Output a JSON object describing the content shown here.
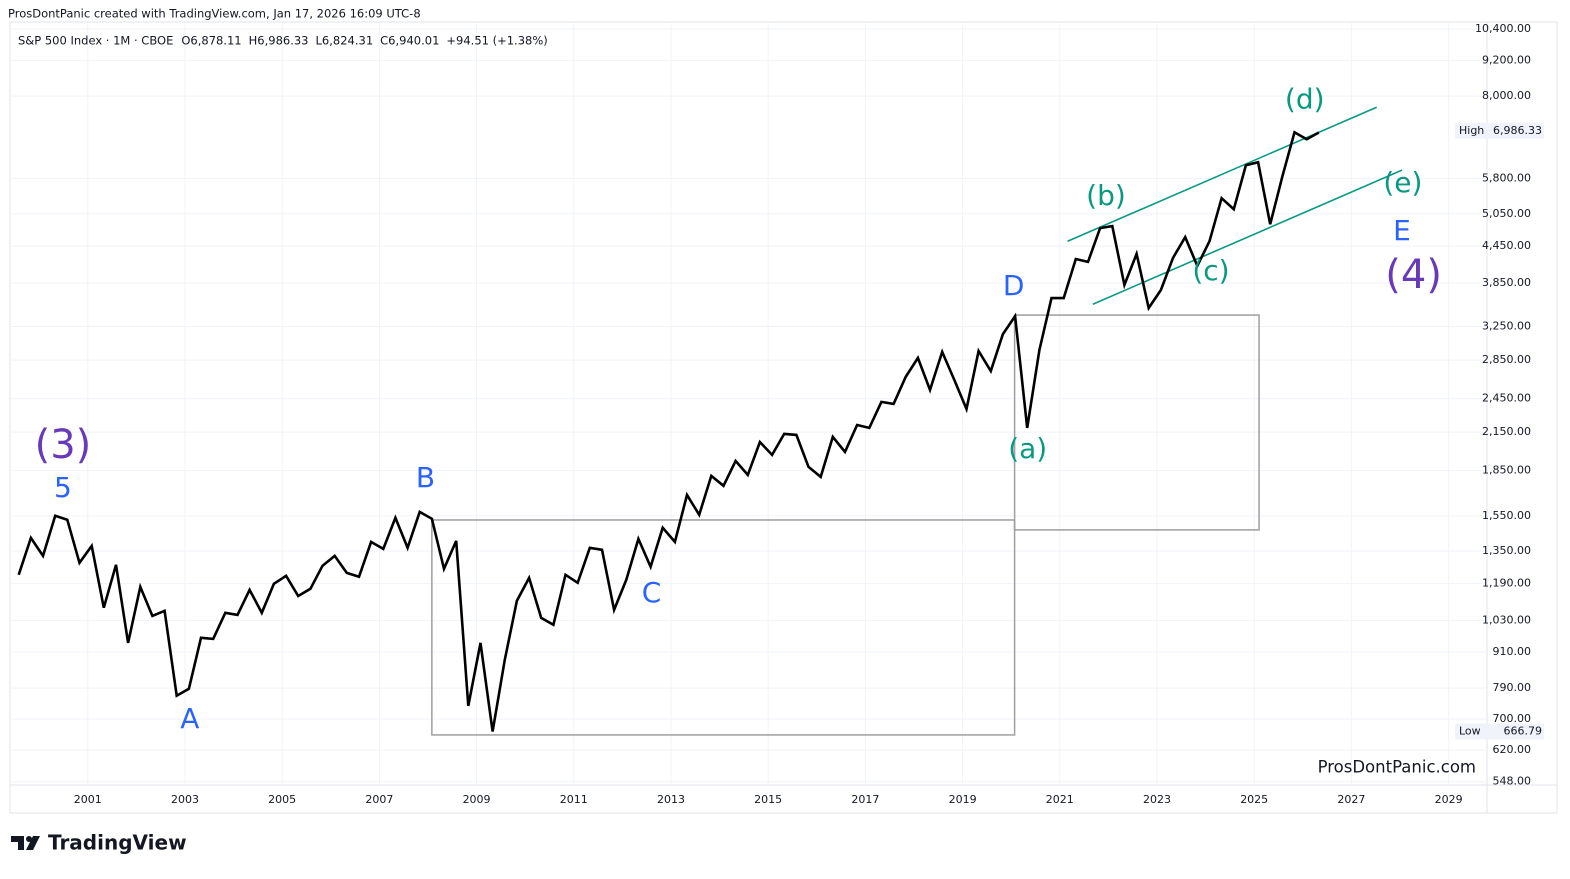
{
  "header": {
    "credit": "ProsDontPanic created with TradingView.com, Jan 17, 2026 16:09 UTC-8",
    "symbol": "S&P 500 Index · 1M · CBOE",
    "ohlc": [
      {
        "label": "O",
        "value": "6,878.11"
      },
      {
        "label": "H",
        "value": "6,986.33"
      },
      {
        "label": "L",
        "value": "6,824.31"
      },
      {
        "label": "C",
        "value": "6,940.01"
      }
    ],
    "change": "+94.51 (+1.38%)"
  },
  "watermark": "ProsDontPanic.com",
  "logo": "TradingView",
  "chart_data": {
    "type": "line",
    "log_scale": true,
    "grid": true,
    "color": "#000000",
    "xlim": [
      1999.4,
      2029.79
    ],
    "ylim": [
      541,
      10690
    ],
    "xticks": [
      2001,
      2003,
      2005,
      2007,
      2009,
      2011,
      2013,
      2015,
      2017,
      2019,
      2021,
      2023,
      2025,
      2027,
      2029
    ],
    "yticks": [
      {
        "value": 10400,
        "label": "10,400.00"
      },
      {
        "value": 9200,
        "label": "9,200.00"
      },
      {
        "value": 8000,
        "label": "8,000.00"
      },
      {
        "value": 5800,
        "label": "5,800.00"
      },
      {
        "value": 5050,
        "label": "5,050.00"
      },
      {
        "value": 4450,
        "label": "4,450.00"
      },
      {
        "value": 3850,
        "label": "3,850.00"
      },
      {
        "value": 3250,
        "label": "3,250.00"
      },
      {
        "value": 2850,
        "label": "2,850.00"
      },
      {
        "value": 2450,
        "label": "2,450.00"
      },
      {
        "value": 2150,
        "label": "2,150.00"
      },
      {
        "value": 1850,
        "label": "1,850.00"
      },
      {
        "value": 1550,
        "label": "1,550.00"
      },
      {
        "value": 1350,
        "label": "1,350.00"
      },
      {
        "value": 1190,
        "label": "1,190.00"
      },
      {
        "value": 1030,
        "label": "1,030.00"
      },
      {
        "value": 910,
        "label": "910.00"
      },
      {
        "value": 790,
        "label": "790.00"
      },
      {
        "value": 700,
        "label": "700.00"
      },
      {
        "value": 620,
        "label": "620.00"
      },
      {
        "value": 548,
        "label": "548.00"
      }
    ],
    "x": [
      1999.58,
      1999.83,
      2000.08,
      2000.33,
      2000.58,
      2000.83,
      2001.08,
      2001.33,
      2001.58,
      2001.83,
      2002.08,
      2002.33,
      2002.58,
      2002.83,
      2003.08,
      2003.33,
      2003.58,
      2003.83,
      2004.08,
      2004.33,
      2004.58,
      2004.83,
      2005.08,
      2005.33,
      2005.58,
      2005.83,
      2006.08,
      2006.33,
      2006.58,
      2006.83,
      2007.08,
      2007.33,
      2007.58,
      2007.83,
      2008.08,
      2008.33,
      2008.58,
      2008.83,
      2009.08,
      2009.33,
      2009.58,
      2009.83,
      2010.08,
      2010.33,
      2010.58,
      2010.83,
      2011.08,
      2011.33,
      2011.58,
      2011.83,
      2012.08,
      2012.33,
      2012.58,
      2012.83,
      2013.08,
      2013.33,
      2013.58,
      2013.83,
      2014.08,
      2014.33,
      2014.58,
      2014.83,
      2015.08,
      2015.33,
      2015.58,
      2015.83,
      2016.08,
      2016.33,
      2016.58,
      2016.83,
      2017.08,
      2017.33,
      2017.58,
      2017.83,
      2018.08,
      2018.33,
      2018.58,
      2018.83,
      2019.08,
      2019.33,
      2019.58,
      2019.83,
      2020.08,
      2020.33,
      2020.58,
      2020.83,
      2021.08,
      2021.33,
      2021.58,
      2021.83,
      2022.08,
      2022.33,
      2022.58,
      2022.83,
      2023.08,
      2023.33,
      2023.58,
      2023.83,
      2024.08,
      2024.33,
      2024.58,
      2024.83,
      2025.08,
      2025.33,
      2025.58,
      2025.83,
      2026.08,
      2026.33
    ],
    "series": [
      {
        "name": "S&P 500 Index",
        "color": "#000000",
        "values": [
          1231,
          1422,
          1325,
          1550,
          1526,
          1290,
          1378,
          1082,
          1280,
          943,
          1174,
          1048,
          1069,
          767,
          788,
          962,
          958,
          1061,
          1052,
          1160,
          1061,
          1188,
          1226,
          1133,
          1165,
          1275,
          1325,
          1240,
          1221,
          1400,
          1362,
          1538,
          1368,
          1574,
          1532,
          1260,
          1405,
          737,
          943,
          667,
          883,
          1112,
          1216,
          1040,
          1012,
          1231,
          1193,
          1368,
          1357,
          1073,
          1207,
          1416,
          1270,
          1479,
          1400,
          1682,
          1556,
          1812,
          1743,
          1921,
          1819,
          2069,
          1967,
          2135,
          2127,
          1877,
          1805,
          2110,
          1990,
          2211,
          2186,
          2420,
          2401,
          2668,
          2874,
          2536,
          2942,
          2637,
          2354,
          2953,
          2731,
          3155,
          3385,
          2186,
          2965,
          3632,
          3632,
          4232,
          4183,
          4774,
          4812,
          3823,
          4316,
          3494,
          3749,
          4249,
          4609,
          4118,
          4537,
          5367,
          5141,
          6107,
          6179,
          4849,
          5848,
          6944,
          6757,
          6940
        ]
      }
    ],
    "price_tags": [
      {
        "label": "High",
        "value": 6986.33,
        "value_label": "6,986.33"
      },
      {
        "label": "Low",
        "value": 666.79,
        "value_label": "666.79"
      }
    ],
    "annotations": [
      {
        "text": "(3)",
        "x": 2000.49,
        "y": 2030,
        "color": "#673ab7",
        "size": "large"
      },
      {
        "text": "5",
        "x": 2000.49,
        "y": 1720,
        "color": "#2962ff"
      },
      {
        "text": "A",
        "x": 2003.1,
        "y": 697,
        "color": "#2962ff"
      },
      {
        "text": "B",
        "x": 2007.95,
        "y": 1791,
        "color": "#2962ff"
      },
      {
        "text": "C",
        "x": 2012.6,
        "y": 1142,
        "color": "#2962ff"
      },
      {
        "text": "D",
        "x": 2020.05,
        "y": 3793,
        "color": "#2962ff"
      },
      {
        "text": "(a)",
        "x": 2020.34,
        "y": 2006,
        "color": "#089981"
      },
      {
        "text": "(b)",
        "x": 2021.95,
        "y": 5393,
        "color": "#089981"
      },
      {
        "text": "(c)",
        "x": 2024.11,
        "y": 4024,
        "color": "#089981"
      },
      {
        "text": "(d)",
        "x": 2026.04,
        "y": 7872,
        "color": "#089981"
      },
      {
        "text": "(e)",
        "x": 2028.06,
        "y": 5673,
        "color": "#089981"
      },
      {
        "text": "E",
        "x": 2028.04,
        "y": 4700,
        "color": "#2962ff"
      },
      {
        "text": "(4)",
        "x": 2028.28,
        "y": 3946,
        "color": "#673ab7",
        "size": "large"
      }
    ],
    "boxes": [
      {
        "x": [
          2008.08,
          2020.07
        ],
        "y": [
          658,
          1525
        ],
        "color": "#9e9e9e"
      },
      {
        "x": [
          2020.07,
          2025.1
        ],
        "y": [
          1467,
          3398
        ],
        "color": "#9e9e9e"
      }
    ],
    "trend_lines": [
      {
        "x": [
          2021.16,
          2027.52
        ],
        "y": [
          4535,
          7660
        ],
        "color": "#089981"
      },
      {
        "x": [
          2021.68,
          2028.04
        ],
        "y": [
          3545,
          5990
        ],
        "color": "#089981"
      }
    ]
  }
}
